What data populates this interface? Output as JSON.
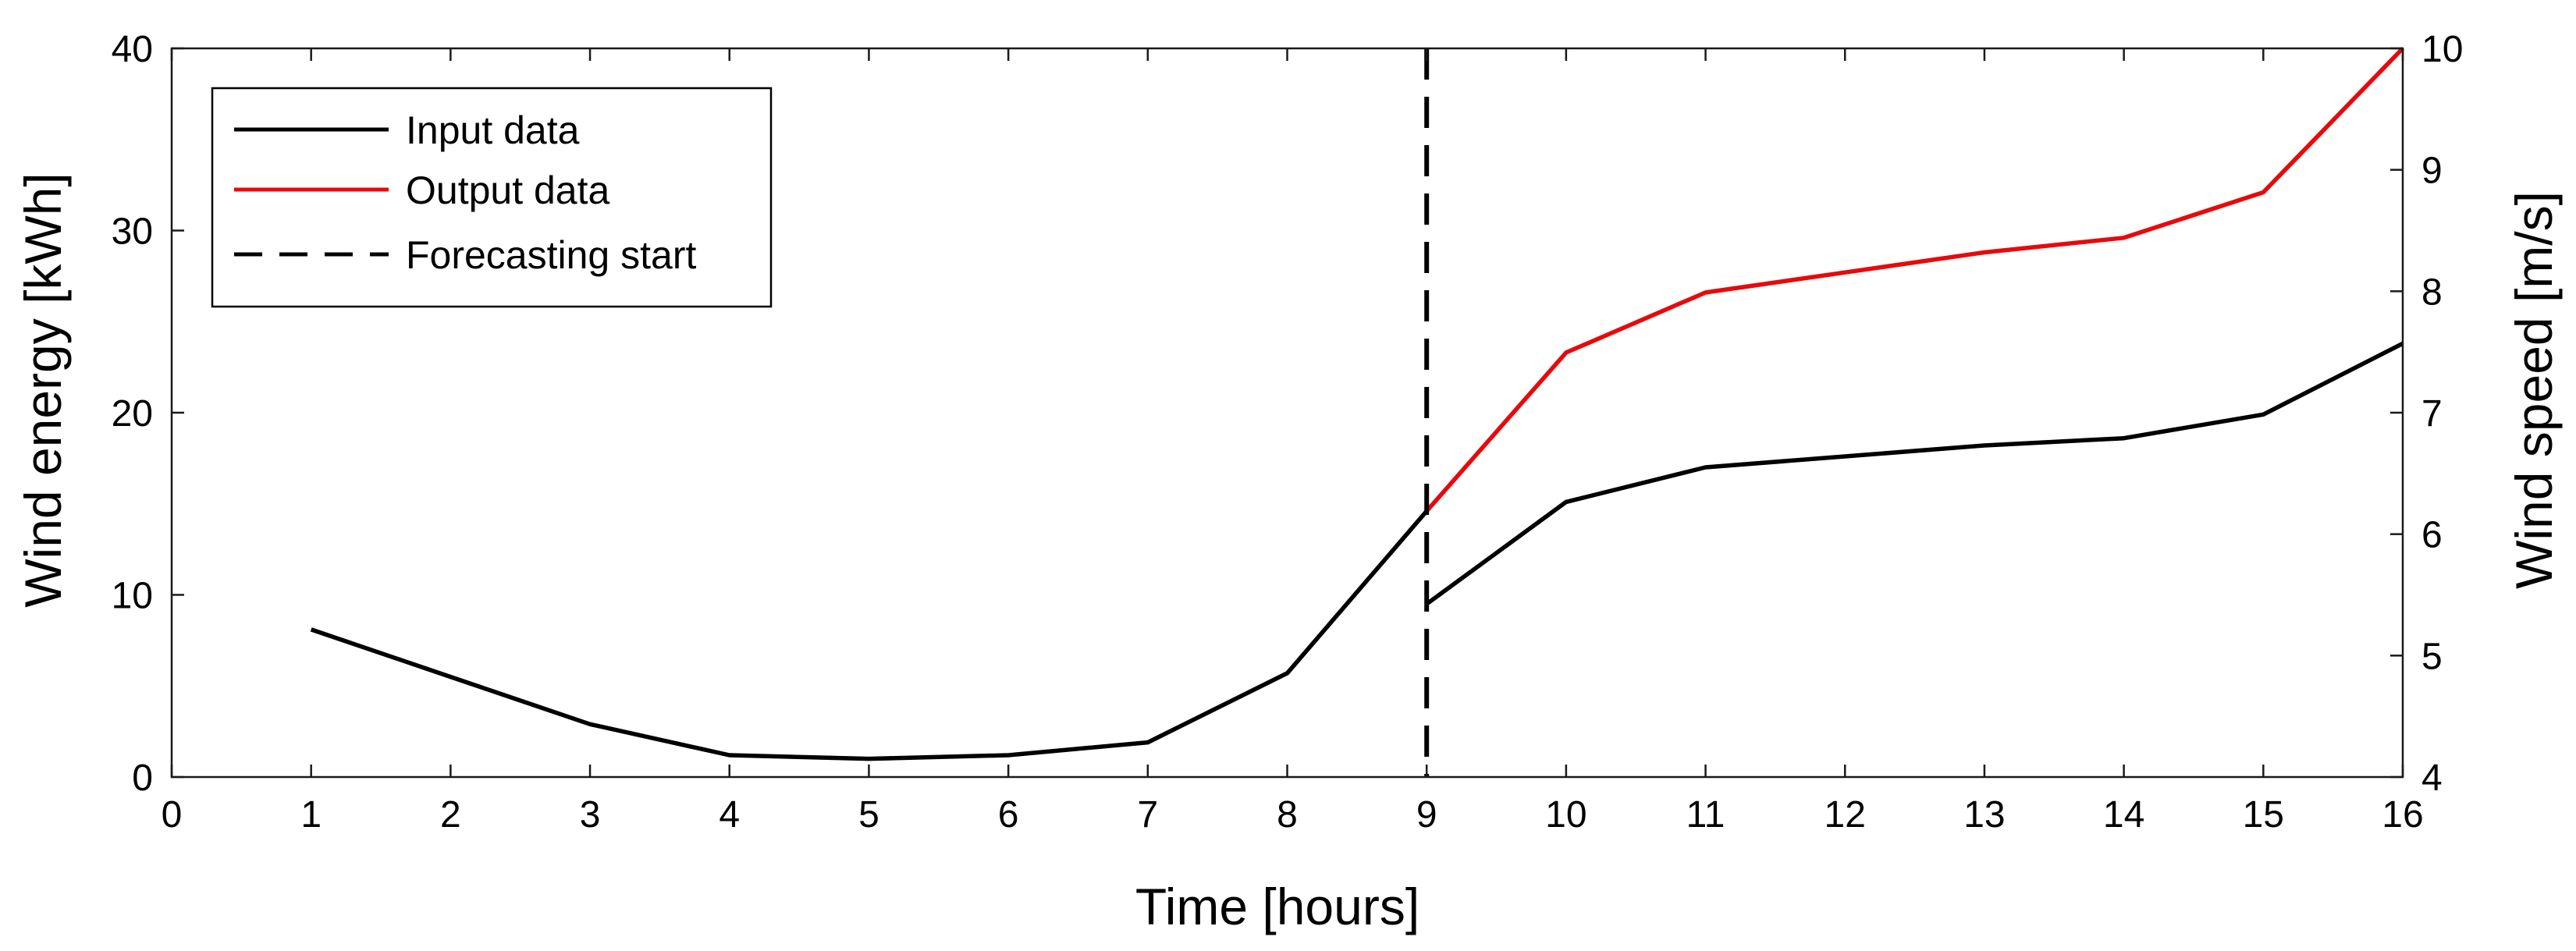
{
  "chart_data": {
    "type": "line",
    "title": "",
    "xlabel": "Time [hours]",
    "ylabel_left": "Wind energy [kWh]",
    "ylabel_right": "Wind speed [m/s]",
    "xlim": [
      0,
      16
    ],
    "ylim_left": [
      0,
      40
    ],
    "ylim_right": [
      4,
      10
    ],
    "xticks": [
      0,
      1,
      2,
      3,
      4,
      5,
      6,
      7,
      8,
      9,
      10,
      11,
      12,
      13,
      14,
      15,
      16
    ],
    "yticks_left": [
      0,
      10,
      20,
      30,
      40
    ],
    "yticks_right": [
      4,
      5,
      6,
      7,
      8,
      9,
      10
    ],
    "grid": false,
    "legend_position": "top-left",
    "forecast_start": 9,
    "series": [
      {
        "name": "Input data",
        "color": "#000000",
        "style": "solid",
        "segments": [
          {
            "x": [
              1,
              2,
              3,
              4,
              5,
              6,
              7,
              8,
              9
            ],
            "y": [
              8.1,
              5.5,
              2.9,
              1.2,
              1.0,
              1.2,
              1.9,
              5.7,
              14.6
            ]
          },
          {
            "x": [
              9,
              10,
              11,
              12,
              13,
              14,
              15,
              16
            ],
            "y": [
              9.5,
              15.1,
              17.0,
              17.6,
              18.2,
              18.6,
              19.9,
              23.8
            ]
          }
        ]
      },
      {
        "name": "Output data",
        "color": "#e8090b",
        "style": "solid",
        "segments": [
          {
            "x": [
              9,
              10,
              11,
              12,
              13,
              14,
              15,
              16
            ],
            "y": [
              14.6,
              23.3,
              26.6,
              27.7,
              28.8,
              29.6,
              32.1,
              40.0
            ]
          }
        ]
      },
      {
        "name": "Forecasting start",
        "color": "#000000",
        "style": "dashed"
      }
    ]
  }
}
